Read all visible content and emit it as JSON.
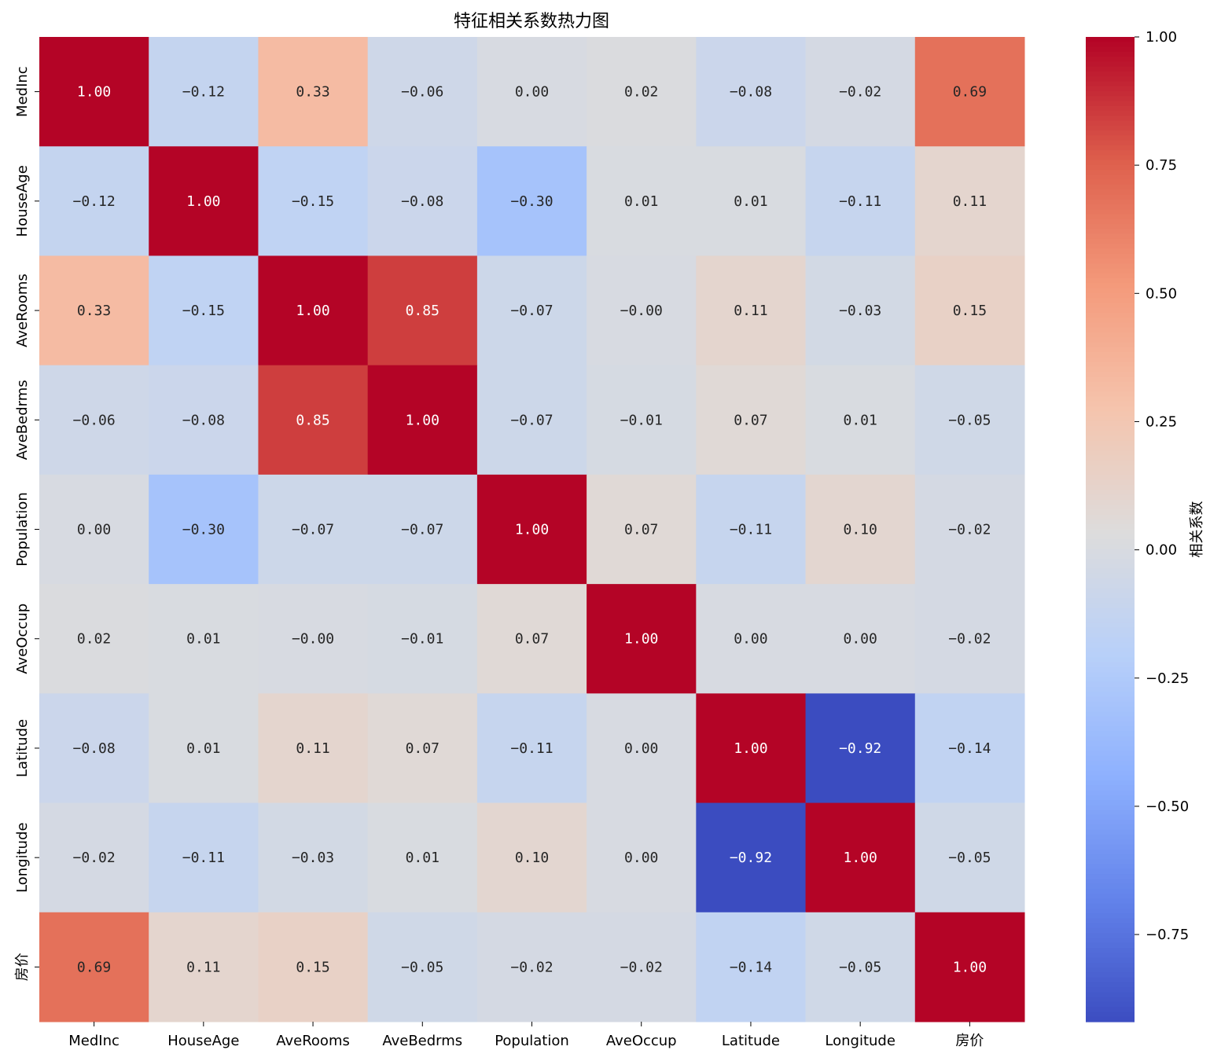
{
  "chart_data": {
    "type": "heatmap",
    "title": "特征相关系数热力图",
    "x_labels": [
      "MedInc",
      "HouseAge",
      "AveRooms",
      "AveBedrms",
      "Population",
      "AveOccup",
      "Latitude",
      "Longitude",
      "房价"
    ],
    "y_labels": [
      "MedInc",
      "HouseAge",
      "AveRooms",
      "AveBedrms",
      "Population",
      "AveOccup",
      "Latitude",
      "Longitude",
      "房价"
    ],
    "matrix": [
      [
        1.0,
        -0.12,
        0.33,
        -0.06,
        0.0,
        0.02,
        -0.08,
        -0.02,
        0.69
      ],
      [
        -0.12,
        1.0,
        -0.15,
        -0.08,
        -0.3,
        0.01,
        0.01,
        -0.11,
        0.11
      ],
      [
        0.33,
        -0.15,
        1.0,
        0.85,
        -0.07,
        -0.0,
        0.11,
        -0.03,
        0.15
      ],
      [
        -0.06,
        -0.08,
        0.85,
        1.0,
        -0.07,
        -0.01,
        0.07,
        0.01,
        -0.05
      ],
      [
        0.0,
        -0.3,
        -0.07,
        -0.07,
        1.0,
        0.07,
        -0.11,
        0.1,
        -0.02
      ],
      [
        0.02,
        0.01,
        -0.0,
        -0.01,
        0.07,
        1.0,
        0.0,
        0.0,
        -0.02
      ],
      [
        -0.08,
        0.01,
        0.11,
        0.07,
        -0.11,
        0.0,
        1.0,
        -0.92,
        -0.14
      ],
      [
        -0.02,
        -0.11,
        -0.03,
        0.01,
        0.1,
        0.0,
        -0.92,
        1.0,
        -0.05
      ],
      [
        0.69,
        0.11,
        0.15,
        -0.05,
        -0.02,
        -0.02,
        -0.14,
        -0.05,
        1.0
      ]
    ],
    "cell_labels": [
      [
        "1.00",
        "−0.12",
        "0.33",
        "−0.06",
        "0.00",
        "0.02",
        "−0.08",
        "−0.02",
        "0.69"
      ],
      [
        "−0.12",
        "1.00",
        "−0.15",
        "−0.08",
        "−0.30",
        "0.01",
        "0.01",
        "−0.11",
        "0.11"
      ],
      [
        "0.33",
        "−0.15",
        "1.00",
        "0.85",
        "−0.07",
        "−0.00",
        "0.11",
        "−0.03",
        "0.15"
      ],
      [
        "−0.06",
        "−0.08",
        "0.85",
        "1.00",
        "−0.07",
        "−0.01",
        "0.07",
        "0.01",
        "−0.05"
      ],
      [
        "0.00",
        "−0.30",
        "−0.07",
        "−0.07",
        "1.00",
        "0.07",
        "−0.11",
        "0.10",
        "−0.02"
      ],
      [
        "0.02",
        "0.01",
        "−0.00",
        "−0.01",
        "0.07",
        "1.00",
        "0.00",
        "0.00",
        "−0.02"
      ],
      [
        "−0.08",
        "0.01",
        "0.11",
        "0.07",
        "−0.11",
        "0.00",
        "1.00",
        "−0.92",
        "−0.14"
      ],
      [
        "−0.02",
        "−0.11",
        "−0.03",
        "0.01",
        "0.10",
        "0.00",
        "−0.92",
        "1.00",
        "−0.05"
      ],
      [
        "0.69",
        "0.11",
        "0.15",
        "−0.05",
        "−0.02",
        "−0.02",
        "−0.14",
        "−0.05",
        "1.00"
      ]
    ],
    "colormap": "coolwarm",
    "vmin": -0.92,
    "vmax": 1.0,
    "colorbar": {
      "label": "相关系数",
      "ticks": [
        1.0,
        0.75,
        0.5,
        0.25,
        0.0,
        -0.25,
        -0.5,
        -0.75
      ],
      "tick_labels": [
        "1.00",
        "0.75",
        "0.50",
        "0.25",
        "0.00",
        "−0.25",
        "−0.50",
        "−0.75"
      ]
    },
    "colors": {
      "low": "#3b4cc0",
      "mid": "#dddcdc",
      "high": "#b40426"
    }
  }
}
